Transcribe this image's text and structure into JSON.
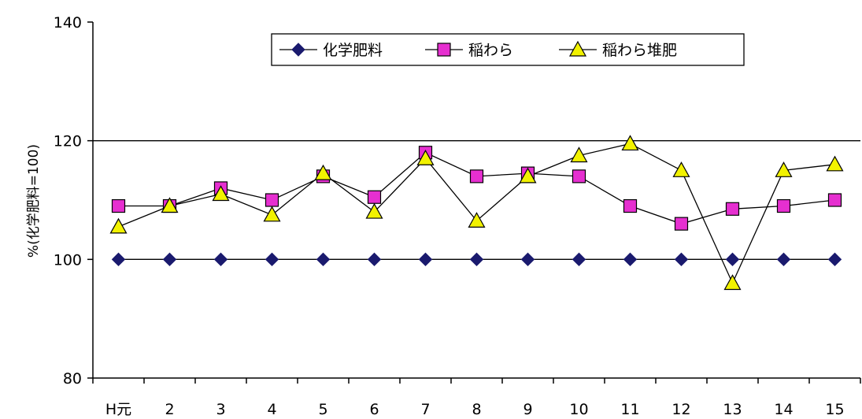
{
  "chart_data": {
    "type": "line",
    "ylabel": "%(化学肥料=100)",
    "xlabel": "",
    "title": "",
    "categories": [
      "H元",
      "2",
      "3",
      "4",
      "5",
      "6",
      "7",
      "8",
      "9",
      "10",
      "11",
      "12",
      "13",
      "14",
      "15"
    ],
    "ylim": [
      80,
      140
    ],
    "yticks": [
      "80",
      "100",
      "120",
      "140"
    ],
    "grid": "horizontal at 120",
    "legend_position": "top-right",
    "series": [
      {
        "name": "化学肥料",
        "marker": "diamond",
        "color": "#1a1a6e",
        "values": [
          100,
          100,
          100,
          100,
          100,
          100,
          100,
          100,
          100,
          100,
          100,
          100,
          100,
          100,
          100
        ]
      },
      {
        "name": "稲わら",
        "marker": "square",
        "color": "#e62fd0",
        "values": [
          109,
          109,
          112,
          110,
          114,
          110.5,
          118,
          114,
          114.5,
          114,
          109,
          106,
          108.5,
          109,
          110
        ]
      },
      {
        "name": "稲わら堆肥",
        "marker": "triangle",
        "color": "#f2f200",
        "values": [
          105.5,
          109,
          111,
          107.5,
          114.5,
          108,
          117,
          106.5,
          114,
          117.5,
          119.5,
          115,
          96,
          115,
          116
        ]
      }
    ]
  }
}
